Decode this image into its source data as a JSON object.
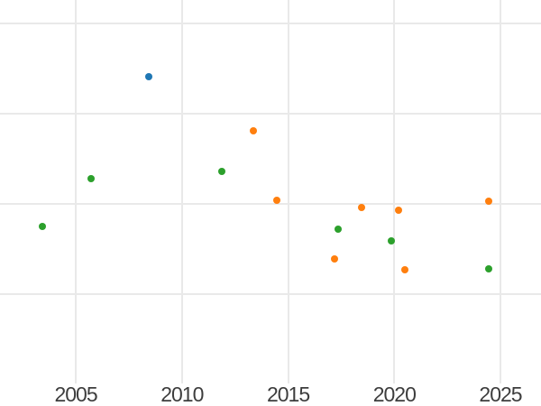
{
  "chart_data": {
    "type": "scatter",
    "title": "",
    "x_axis": {
      "label": "",
      "tick_labels": [
        "2005",
        "2010",
        "2015",
        "2020",
        "2025"
      ],
      "tick_values": [
        2005,
        2010,
        2015,
        2020,
        2025
      ],
      "range": [
        2001.43,
        2026.91
      ]
    },
    "y_axis": {
      "label": "",
      "tick_labels": [],
      "gridline_values": [
        0,
        1,
        2,
        3
      ],
      "range": [
        -0.99,
        3.26
      ]
    },
    "grid": true,
    "legend_position": "none",
    "marker_diameter_px": 8,
    "series": [
      {
        "name": "blue",
        "color": "#1f77b4",
        "points": [
          {
            "x": 2008.44,
            "y": 2.41
          }
        ]
      },
      {
        "name": "green",
        "color": "#2ca02c",
        "points": [
          {
            "x": 2003.42,
            "y": 0.75
          },
          {
            "x": 2005.71,
            "y": 1.28
          },
          {
            "x": 2011.87,
            "y": 1.36
          },
          {
            "x": 2017.36,
            "y": 0.72
          },
          {
            "x": 2019.86,
            "y": 0.59
          },
          {
            "x": 2024.43,
            "y": 0.28
          }
        ]
      },
      {
        "name": "orange",
        "color": "#ff7f0e",
        "points": [
          {
            "x": 2013.37,
            "y": 1.81
          },
          {
            "x": 2014.48,
            "y": 1.04
          },
          {
            "x": 2017.17,
            "y": 0.39
          },
          {
            "x": 2018.45,
            "y": 0.96
          },
          {
            "x": 2020.21,
            "y": 0.93
          },
          {
            "x": 2020.51,
            "y": 0.27
          },
          {
            "x": 2024.43,
            "y": 1.03
          }
        ]
      }
    ],
    "colors": {
      "background": "#ffffff",
      "gridline": "#e9e9e9",
      "tick_label": "#3d3d3d"
    }
  }
}
